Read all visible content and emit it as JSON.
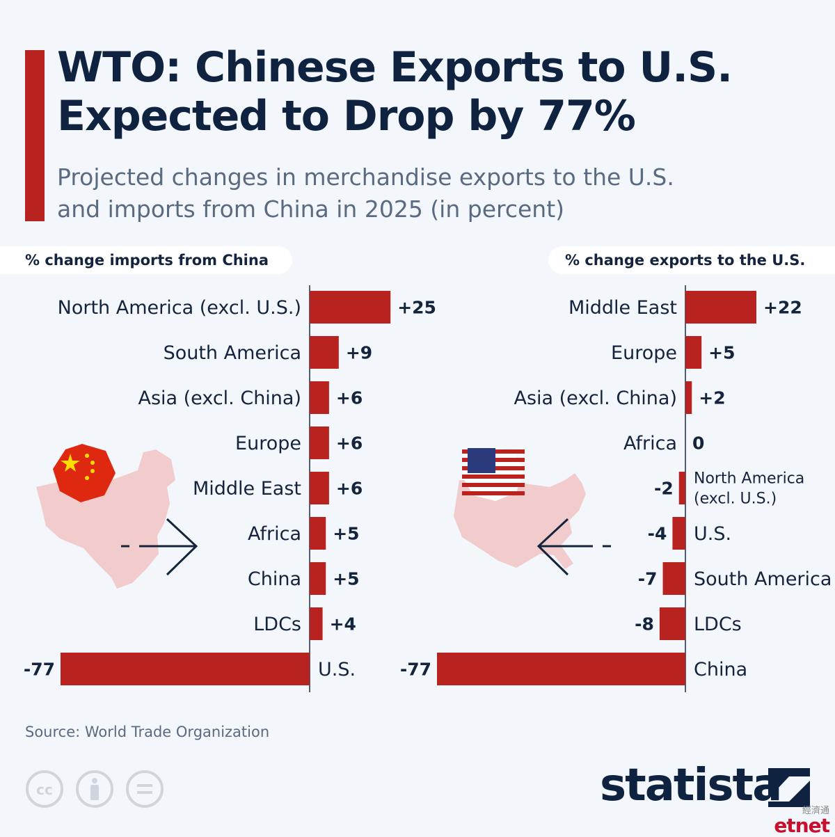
{
  "header": {
    "title_line1": "WTO: Chinese Exports to U.S.",
    "title_line2": "Expected to Drop by 77%",
    "subtitle_line1": "Projected changes in merchandise exports to the U.S.",
    "subtitle_line2": "and imports from China in 2025 (in percent)"
  },
  "chart_data": [
    {
      "type": "bar",
      "orientation": "horizontal",
      "title": "% change imports from China",
      "categories": [
        "North America (excl. U.S.)",
        "South America",
        "Asia (excl. China)",
        "Europe",
        "Middle East",
        "Africa",
        "China",
        "LDCs",
        "U.S."
      ],
      "values": [
        25,
        9,
        6,
        6,
        6,
        5,
        5,
        4,
        -77
      ],
      "value_labels": [
        "+25",
        "+9",
        "+6",
        "+6",
        "+6",
        "+5",
        "+5",
        "+4",
        "-77"
      ],
      "grid": false
    },
    {
      "type": "bar",
      "orientation": "horizontal",
      "title": "% change exports to the U.S.",
      "categories": [
        "Middle East",
        "Europe",
        "Asia (excl. China)",
        "Africa",
        "North America (excl. U.S.)",
        "U.S.",
        "South America",
        "LDCs",
        "China"
      ],
      "values": [
        22,
        5,
        2,
        0,
        -2,
        -4,
        -7,
        -8,
        -77
      ],
      "value_labels": [
        "+22",
        "+5",
        "+2",
        "0",
        "-2",
        "-4",
        "-7",
        "-8",
        "-77"
      ],
      "grid": false
    }
  ],
  "footer": {
    "source": "Source: World Trade Organization",
    "brand": "statista",
    "watermark_zh": "經濟通",
    "watermark_en": "etnet"
  },
  "colors": {
    "bar": "#b8231f",
    "text_dark": "#14243d",
    "map": "#f2cccc"
  },
  "icons": [
    "china-flag-icon",
    "us-flag-icon",
    "china-map-icon",
    "us-map-icon",
    "arrow-right-icon",
    "arrow-left-icon",
    "cc-icon",
    "attribution-icon",
    "no-derivatives-icon",
    "statista-logo-icon"
  ]
}
